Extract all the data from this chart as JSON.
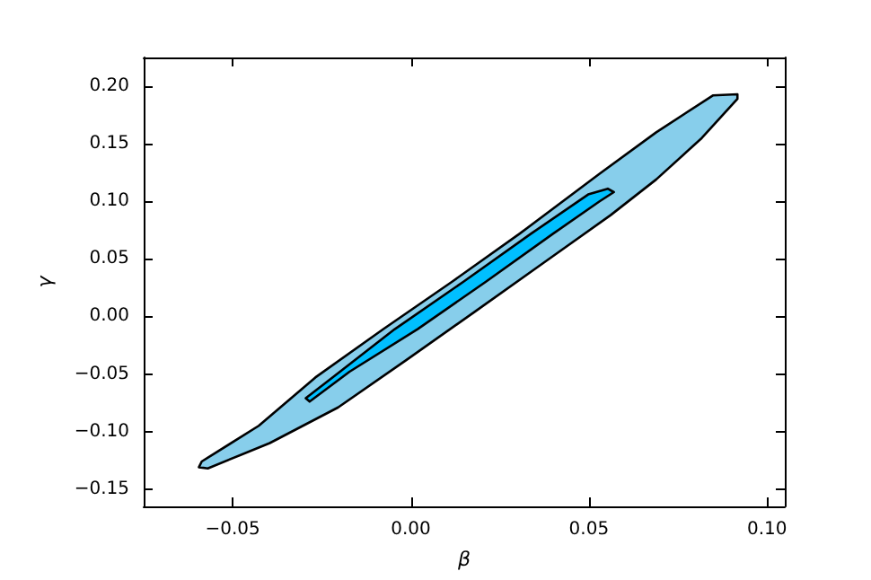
{
  "chart_data": {
    "type": "area",
    "xlabel": "β",
    "ylabel": "γ",
    "xlim": [
      -0.075,
      0.105
    ],
    "ylim": [
      -0.165,
      0.225
    ],
    "xticks": [
      {
        "value": -0.05,
        "label": "−0.05"
      },
      "0.00",
      {
        "value": 0.05,
        "label": "0.05"
      },
      {
        "value": 0.1,
        "label": "0.10"
      }
    ],
    "yticks": [
      {
        "value": -0.15,
        "label": "−0.15"
      },
      {
        "value": -0.1,
        "label": "−0.10"
      },
      {
        "value": -0.05,
        "label": "−0.05"
      },
      {
        "value": 0,
        "label": "0.00"
      },
      {
        "value": 0.05,
        "label": "0.05"
      },
      {
        "value": 0.1,
        "label": "0.10"
      },
      {
        "value": 0.15,
        "label": "0.15"
      },
      {
        "value": 0.2,
        "label": "0.20"
      }
    ],
    "grid": false,
    "series": [
      {
        "color": "#87ceeb",
        "x": [
          -0.0595,
          -0.0587,
          -0.0427,
          -0.0268,
          -0.0077,
          0.0115,
          0.0306,
          0.053,
          0.0689,
          0.0848,
          0.0917,
          0.0917,
          0.0817,
          0.0689,
          0.0561,
          0.037,
          0.0179,
          -0.0013,
          -0.0204,
          -0.0396,
          -0.057
        ],
        "values": [
          -0.131,
          -0.126,
          -0.095,
          -0.053,
          -0.011,
          0.03,
          0.072,
          0.124,
          0.16,
          0.192,
          0.193,
          0.189,
          0.155,
          0.119,
          0.088,
          0.046,
          0.004,
          -0.038,
          -0.079,
          -0.11,
          -0.132
        ]
      },
      {
        "color": "#00bfff",
        "x": [
          -0.0295,
          -0.022,
          -0.0045,
          0.0147,
          0.0338,
          0.0498,
          0.0553,
          0.057,
          0.053,
          0.04,
          0.021,
          0.0019,
          -0.0172,
          -0.0284
        ],
        "values": [
          -0.071,
          -0.053,
          -0.011,
          0.03,
          0.072,
          0.106,
          0.111,
          0.108,
          0.1,
          0.072,
          0.03,
          -0.011,
          -0.048,
          -0.074
        ]
      }
    ]
  }
}
